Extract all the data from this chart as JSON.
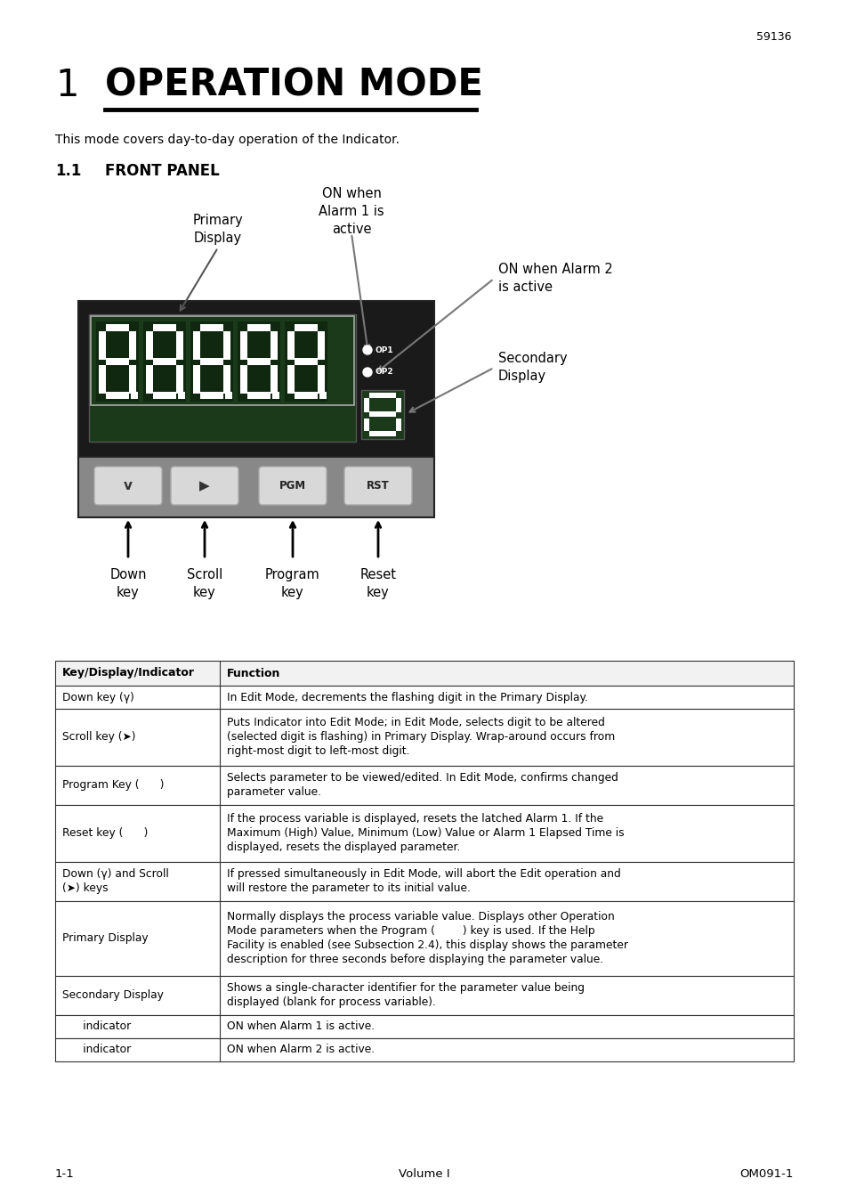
{
  "page_number_top": "59136",
  "chapter_number": "1",
  "chapter_title": "OPERATION MODE",
  "intro_text": "This mode covers day-to-day operation of the Indicator.",
  "section_number": "1.1",
  "section_title": "FRONT PANEL",
  "label_primary_display": "Primary\nDisplay",
  "label_on_alarm1": "ON when\nAlarm 1 is\nactive",
  "label_on_alarm2": "ON when Alarm 2\nis active",
  "label_secondary_display": "Secondary\nDisplay",
  "label_down_key": "Down\nkey",
  "label_scroll_key": "Scroll\nkey",
  "label_program_key": "Program\nkey",
  "label_reset_key": "Reset\nkey",
  "table_headers": [
    "Key/Display/Indicator",
    "Function"
  ],
  "table_rows": [
    [
      "Down key (γ)",
      "In Edit Mode, decrements the flashing digit in the Primary Display."
    ],
    [
      "Scroll key (➤)",
      "Puts Indicator into Edit Mode; in Edit Mode, selects digit to be altered\n(selected digit is flashing) in Primary Display. Wrap-around occurs from\nright-most digit to left-most digit."
    ],
    [
      "Program Key (      )",
      "Selects parameter to be viewed/edited. In Edit Mode, confirms changed\nparameter value."
    ],
    [
      "Reset key (      )",
      "If the process variable is displayed, resets the latched Alarm 1. If the\nMaximum (High) Value, Minimum (Low) Value or Alarm 1 Elapsed Time is\ndisplayed, resets the displayed parameter."
    ],
    [
      "Down (γ) and Scroll\n(➤) keys",
      "If pressed simultaneously in Edit Mode, will abort the Edit operation and\nwill restore the parameter to its initial value."
    ],
    [
      "Primary Display",
      "Normally displays the process variable value. Displays other Operation\nMode parameters when the Program (        ) key is used. If the Help\nFacility is enabled (see Subsection 2.4), this display shows the parameter\ndescription for three seconds before displaying the parameter value."
    ],
    [
      "Secondary Display",
      "Shows a single-character identifier for the parameter value being\ndisplayed (blank for process variable)."
    ],
    [
      "      indicator",
      "ON when Alarm 1 is active."
    ],
    [
      "      indicator",
      "ON when Alarm 2 is active."
    ]
  ],
  "footer_left": "1-1",
  "footer_center": "Volume I",
  "footer_right": "OM091-1",
  "bg_color": "#ffffff",
  "device_bg": "#1a1a1a",
  "device_lower_bg": "#888888",
  "display_bg": "#2d4a2d",
  "button_color": "#d8d8d8"
}
